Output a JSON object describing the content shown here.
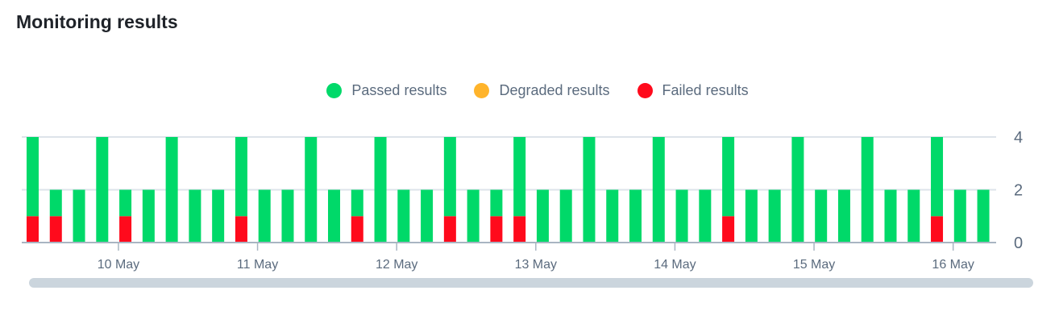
{
  "title": "Monitoring results",
  "legend": [
    {
      "label": "Passed results",
      "color": "#00d969"
    },
    {
      "label": "Degraded results",
      "color": "#ffb42b"
    },
    {
      "label": "Failed results",
      "color": "#ff0a1c"
    }
  ],
  "chart_data": {
    "type": "bar",
    "stacked": true,
    "x_tick_labels": [
      "10 May",
      "11 May",
      "12 May",
      "13 May",
      "14 May",
      "15 May",
      "16 May"
    ],
    "y_ticks": [
      0,
      2,
      4
    ],
    "ylim": [
      0,
      4
    ],
    "y_axis_position": "right",
    "grid": true,
    "legend_position": "top",
    "series": [
      {
        "name": "Passed results",
        "color": "#00d969",
        "values": [
          3,
          1,
          2,
          4,
          1,
          2,
          4,
          2,
          2,
          3,
          2,
          2,
          4,
          2,
          1,
          4,
          2,
          2,
          3,
          2,
          1,
          3,
          2,
          2,
          4,
          2,
          2,
          4,
          2,
          2,
          3,
          2,
          2,
          4,
          2,
          2,
          4,
          2,
          2,
          3,
          2,
          2
        ]
      },
      {
        "name": "Degraded results",
        "color": "#ffb42b",
        "values": [
          0,
          0,
          0,
          0,
          0,
          0,
          0,
          0,
          0,
          0,
          0,
          0,
          0,
          0,
          0,
          0,
          0,
          0,
          0,
          0,
          0,
          0,
          0,
          0,
          0,
          0,
          0,
          0,
          0,
          0,
          0,
          0,
          0,
          0,
          0,
          0,
          0,
          0,
          0,
          0,
          0,
          0
        ]
      },
      {
        "name": "Failed results",
        "color": "#ff0a1c",
        "values": [
          1,
          1,
          0,
          0,
          1,
          0,
          0,
          0,
          0,
          1,
          0,
          0,
          0,
          0,
          1,
          0,
          0,
          0,
          1,
          0,
          1,
          1,
          0,
          0,
          0,
          0,
          0,
          0,
          0,
          0,
          1,
          0,
          0,
          0,
          0,
          0,
          0,
          0,
          0,
          1,
          0,
          0
        ]
      }
    ]
  }
}
